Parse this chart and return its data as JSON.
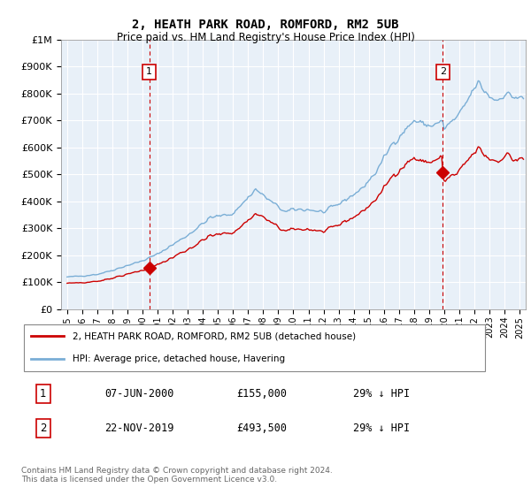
{
  "title": "2, HEATH PARK ROAD, ROMFORD, RM2 5UB",
  "subtitle": "Price paid vs. HM Land Registry's House Price Index (HPI)",
  "legend_line1": "2, HEATH PARK ROAD, ROMFORD, RM2 5UB (detached house)",
  "legend_line2": "HPI: Average price, detached house, Havering",
  "transaction1": {
    "num": 1,
    "date": "07-JUN-2000",
    "price": "£155,000",
    "hpi_rel": "29% ↓ HPI"
  },
  "transaction2": {
    "num": 2,
    "date": "22-NOV-2019",
    "price": "£493,500",
    "hpi_rel": "29% ↓ HPI"
  },
  "copyright": "Contains HM Land Registry data © Crown copyright and database right 2024.\nThis data is licensed under the Open Government Licence v3.0.",
  "hpi_color": "#7aaed6",
  "price_color": "#cc0000",
  "dashed_color": "#cc0000",
  "bg_color": "#e8f0f8",
  "marker1_year": 2000.44,
  "marker2_year": 2019.9,
  "ylim": [
    0,
    1000000
  ],
  "xlim_start": 1994.6,
  "xlim_end": 2025.4,
  "yticks": [
    0,
    100000,
    200000,
    300000,
    400000,
    500000,
    600000,
    700000,
    800000,
    900000,
    1000000
  ],
  "xtick_years": [
    1995,
    1996,
    1997,
    1998,
    1999,
    2000,
    2001,
    2002,
    2003,
    2004,
    2005,
    2006,
    2007,
    2008,
    2009,
    2010,
    2011,
    2012,
    2013,
    2014,
    2015,
    2016,
    2017,
    2018,
    2019,
    2020,
    2021,
    2022,
    2023,
    2024,
    2025
  ]
}
